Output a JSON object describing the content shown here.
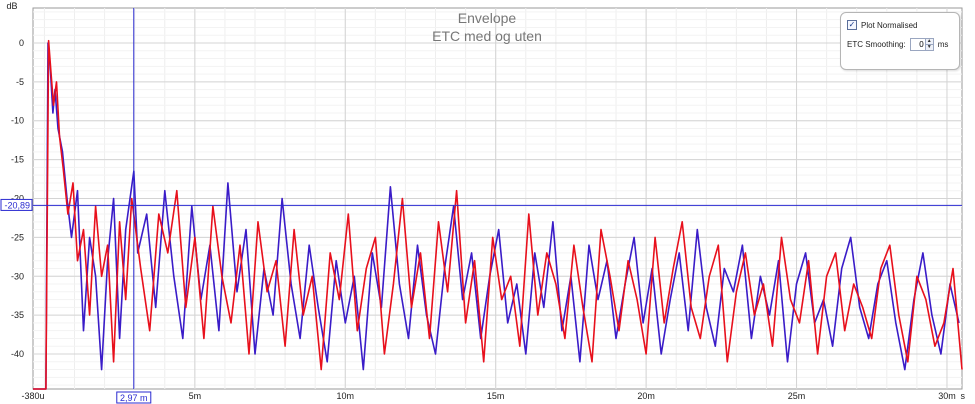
{
  "chart_data": {
    "type": "line",
    "title": "Envelope",
    "subtitle": "ETC med og uten",
    "ylabel": "dB",
    "x_unit": "s",
    "xlim": [
      -0.00038,
      0.0305
    ],
    "ylim": [
      -44.5,
      4.5
    ],
    "x_ticks": [
      {
        "value": -0.00038,
        "label": "-380u"
      },
      {
        "value": 0.005,
        "label": "5m"
      },
      {
        "value": 0.01,
        "label": "10m"
      },
      {
        "value": 0.015,
        "label": "15m"
      },
      {
        "value": 0.02,
        "label": "20m"
      },
      {
        "value": 0.025,
        "label": "25m"
      },
      {
        "value": 0.03,
        "label": "30m"
      }
    ],
    "y_ticks": [
      0,
      -5,
      -10,
      -15,
      -20,
      -25,
      -30,
      -35,
      -40
    ],
    "grid": true,
    "cursor": {
      "x": 0.00297,
      "y": -20.89,
      "x_label": "2,97 m",
      "y_label": "-20,89"
    },
    "series": [
      {
        "color": "#3a1cc8",
        "x": [
          -0.00038,
          5e-05,
          0.00012,
          0.0002,
          0.00028,
          0.00035,
          0.00045,
          0.0006,
          0.00075,
          0.0009,
          0.0011,
          0.0013,
          0.0015,
          0.0017,
          0.0019,
          0.0021,
          0.0023,
          0.0025,
          0.0027,
          0.00297,
          0.0031,
          0.0034,
          0.0037,
          0.004,
          0.0043,
          0.0046,
          0.0049,
          0.0052,
          0.0055,
          0.0058,
          0.0061,
          0.0064,
          0.0067,
          0.007,
          0.0073,
          0.0076,
          0.0079,
          0.0082,
          0.0085,
          0.0088,
          0.0091,
          0.0094,
          0.0097,
          0.01,
          0.0103,
          0.0106,
          0.0109,
          0.0112,
          0.0115,
          0.0118,
          0.0121,
          0.0124,
          0.0127,
          0.013,
          0.0133,
          0.0136,
          0.0139,
          0.0142,
          0.0145,
          0.0148,
          0.0151,
          0.0154,
          0.0157,
          0.016,
          0.0163,
          0.0166,
          0.0169,
          0.0172,
          0.0175,
          0.0178,
          0.0181,
          0.0184,
          0.0187,
          0.019,
          0.0193,
          0.0196,
          0.0199,
          0.0202,
          0.0205,
          0.0208,
          0.0211,
          0.0214,
          0.0217,
          0.022,
          0.0223,
          0.0226,
          0.0229,
          0.0232,
          0.0235,
          0.0238,
          0.0241,
          0.0244,
          0.0247,
          0.025,
          0.0253,
          0.0256,
          0.0259,
          0.0262,
          0.0265,
          0.0268,
          0.0271,
          0.0274,
          0.0277,
          0.028,
          0.0283,
          0.0286,
          0.0289,
          0.0292,
          0.0295,
          0.0298,
          0.0301,
          0.0304
        ],
        "y": [
          -44.5,
          -44.5,
          0.0,
          -3.5,
          -9,
          -6,
          -11,
          -14,
          -20,
          -25,
          -19,
          -37,
          -25,
          -30,
          -42,
          -28,
          -20,
          -38,
          -24,
          -16.5,
          -27,
          -22,
          -34,
          -19,
          -30,
          -38,
          -21,
          -33,
          -26,
          -37,
          -18,
          -32,
          -24,
          -40,
          -29,
          -35,
          -20,
          -31,
          -38,
          -26,
          -34,
          -41,
          -28,
          -36,
          -30,
          -42,
          -27,
          -34,
          -18.5,
          -31,
          -38,
          -26,
          -35,
          -40,
          -29,
          -21,
          -33,
          -27,
          -38,
          -30,
          -24,
          -36,
          -31,
          -40,
          -27,
          -34,
          -23,
          -37,
          -30,
          -41,
          -26,
          -33,
          -28,
          -38,
          -31,
          -25,
          -36,
          -29,
          -40,
          -33,
          -27,
          -37,
          -24,
          -34,
          -39,
          -29,
          -32,
          -26,
          -38,
          -30,
          -35,
          -28,
          -41,
          -31,
          -27,
          -36,
          -33,
          -39,
          -29,
          -25,
          -34,
          -38,
          -31,
          -28,
          -36,
          -42,
          -33,
          -27,
          -35,
          -40,
          -31,
          -36
        ],
        "name": ""
      },
      {
        "color": "#e8101c",
        "x": [
          -0.00038,
          5e-05,
          0.00014,
          0.00022,
          0.0003,
          0.0004,
          0.0005,
          0.00062,
          0.00078,
          0.00095,
          0.0011,
          0.0013,
          0.0015,
          0.0017,
          0.0019,
          0.0021,
          0.0023,
          0.0025,
          0.0027,
          0.0029,
          0.0032,
          0.0035,
          0.0038,
          0.0041,
          0.0044,
          0.0047,
          0.005,
          0.0053,
          0.0056,
          0.0059,
          0.0062,
          0.0065,
          0.0068,
          0.0071,
          0.0074,
          0.0077,
          0.008,
          0.0083,
          0.0086,
          0.0089,
          0.0092,
          0.0095,
          0.0098,
          0.0101,
          0.0104,
          0.0107,
          0.011,
          0.0113,
          0.0116,
          0.0119,
          0.0122,
          0.0125,
          0.0128,
          0.0131,
          0.0134,
          0.0137,
          0.014,
          0.0143,
          0.0146,
          0.0149,
          0.0152,
          0.0155,
          0.0158,
          0.0161,
          0.0164,
          0.0167,
          0.017,
          0.0173,
          0.0176,
          0.0179,
          0.0182,
          0.0185,
          0.0188,
          0.0191,
          0.0194,
          0.0197,
          0.02,
          0.0203,
          0.0206,
          0.0209,
          0.0212,
          0.0215,
          0.0218,
          0.0221,
          0.0224,
          0.0227,
          0.023,
          0.0233,
          0.0236,
          0.0239,
          0.0242,
          0.0245,
          0.0248,
          0.0251,
          0.0254,
          0.0257,
          0.026,
          0.0263,
          0.0266,
          0.0269,
          0.0272,
          0.0275,
          0.0278,
          0.0281,
          0.0284,
          0.0287,
          0.029,
          0.0293,
          0.0296,
          0.0299,
          0.0302,
          0.0305
        ],
        "y": [
          -44.5,
          -44.5,
          0.3,
          -4,
          -8,
          -5,
          -12,
          -16,
          -22,
          -18,
          -28,
          -24,
          -35,
          -21,
          -30,
          -26,
          -41,
          -23,
          -33,
          -20,
          -29,
          -37,
          -22,
          -27,
          -19,
          -34,
          -25,
          -38,
          -21,
          -30,
          -36,
          -26,
          -40,
          -23,
          -32,
          -28,
          -39,
          -24,
          -35,
          -30,
          -42,
          -27,
          -33,
          -22,
          -37,
          -29,
          -25,
          -40,
          -31,
          -20,
          -34,
          -27,
          -38,
          -23,
          -32,
          -19,
          -36,
          -28,
          -41,
          -25,
          -33,
          -30,
          -39,
          -22,
          -35,
          -27,
          -31,
          -38,
          -26,
          -34,
          -41,
          -24,
          -30,
          -37,
          -28,
          -33,
          -40,
          -25,
          -36,
          -29,
          -23,
          -34,
          -38,
          -30,
          -26,
          -41,
          -32,
          -27,
          -35,
          -31,
          -39,
          -25,
          -33,
          -36,
          -28,
          -40,
          -30,
          -27,
          -37,
          -31,
          -34,
          -38,
          -29,
          -26,
          -35,
          -41,
          -30,
          -33,
          -39,
          -36,
          -29,
          -42
        ],
        "name": ""
      }
    ]
  },
  "panel": {
    "plot_normalised_label": "Plot Normalised",
    "plot_normalised_checked": true,
    "etc_smoothing_label": "ETC Smoothing:",
    "etc_smoothing_value": "0",
    "etc_smoothing_unit": "ms"
  },
  "icons": {
    "checkbox": "check-icon",
    "spinner_up": "caret-up-icon",
    "spinner_down": "caret-down-icon"
  }
}
